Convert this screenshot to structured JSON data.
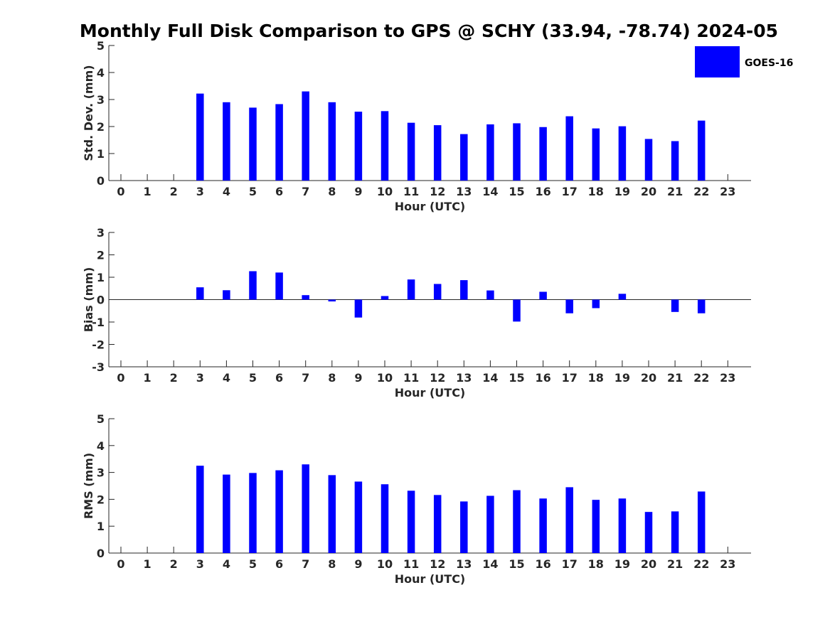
{
  "title": "Monthly Full Disk Comparison to GPS @ SCHY (33.94, -78.74) 2024-05",
  "legend": {
    "label": "GOES-16",
    "color": "#0000ff",
    "placement": "top-right"
  },
  "chart_data": [
    {
      "type": "bar",
      "xlabel": "Hour (UTC)",
      "ylabel": "Std. Dev. (mm)",
      "ylim": [
        0,
        5
      ],
      "yticks": [
        "0",
        "1",
        "2",
        "3",
        "4",
        "5"
      ],
      "categories": [
        "0",
        "1",
        "2",
        "3",
        "4",
        "5",
        "6",
        "7",
        "8",
        "9",
        "10",
        "11",
        "12",
        "13",
        "14",
        "15",
        "16",
        "17",
        "18",
        "19",
        "20",
        "21",
        "22",
        "23"
      ],
      "series": [
        {
          "name": "GOES-16",
          "values": [
            null,
            null,
            null,
            3.22,
            2.9,
            2.7,
            2.83,
            3.3,
            2.9,
            2.55,
            2.57,
            2.14,
            2.05,
            1.72,
            2.08,
            2.12,
            1.98,
            2.38,
            1.93,
            2.01,
            1.54,
            1.46,
            2.22,
            null
          ]
        }
      ]
    },
    {
      "type": "bar",
      "xlabel": "Hour (UTC)",
      "ylabel": "Bias (mm)",
      "ylim": [
        -3,
        3
      ],
      "yticks": [
        "-3",
        "-2",
        "-1",
        "0",
        "1",
        "2",
        "3"
      ],
      "zero_line": true,
      "categories": [
        "0",
        "1",
        "2",
        "3",
        "4",
        "5",
        "6",
        "7",
        "8",
        "9",
        "10",
        "11",
        "12",
        "13",
        "14",
        "15",
        "16",
        "17",
        "18",
        "19",
        "20",
        "21",
        "22",
        "23"
      ],
      "series": [
        {
          "name": "GOES-16",
          "values": [
            null,
            null,
            null,
            0.55,
            0.42,
            1.27,
            1.21,
            0.2,
            -0.08,
            -0.8,
            0.16,
            0.9,
            0.7,
            0.87,
            0.41,
            -0.98,
            0.35,
            -0.61,
            -0.38,
            0.26,
            null,
            -0.55,
            -0.61,
            null
          ]
        }
      ]
    },
    {
      "type": "bar",
      "xlabel": "Hour (UTC)",
      "ylabel": "RMS (mm)",
      "ylim": [
        0,
        5
      ],
      "yticks": [
        "0",
        "1",
        "2",
        "3",
        "4",
        "5"
      ],
      "categories": [
        "0",
        "1",
        "2",
        "3",
        "4",
        "5",
        "6",
        "7",
        "8",
        "9",
        "10",
        "11",
        "12",
        "13",
        "14",
        "15",
        "16",
        "17",
        "18",
        "19",
        "20",
        "21",
        "22",
        "23"
      ],
      "series": [
        {
          "name": "GOES-16",
          "values": [
            null,
            null,
            null,
            3.25,
            2.92,
            2.98,
            3.08,
            3.3,
            2.9,
            2.66,
            2.56,
            2.32,
            2.16,
            1.92,
            2.13,
            2.34,
            2.03,
            2.45,
            1.98,
            2.03,
            1.53,
            1.55,
            2.29,
            null
          ]
        }
      ]
    }
  ]
}
